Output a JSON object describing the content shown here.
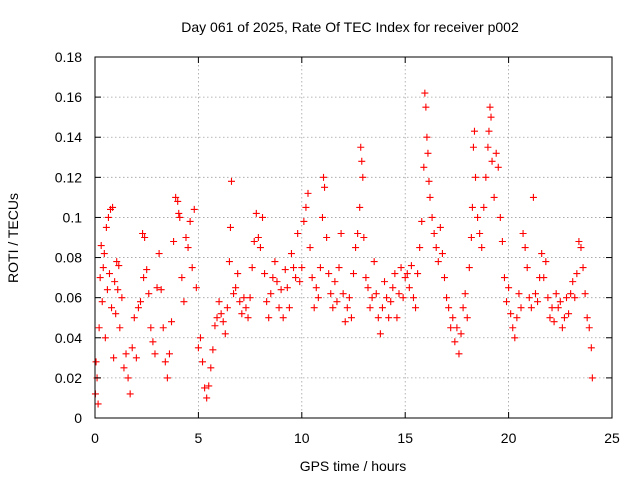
{
  "chart_data": {
    "type": "scatter",
    "title": "Day 061 of 2025, Rate Of TEC Index for receiver p002",
    "xlabel": "GPS time / hours",
    "ylabel": "ROTI / TECUs",
    "xlim": [
      0,
      25
    ],
    "ylim": [
      0,
      0.18
    ],
    "x_ticks": [
      0,
      5,
      10,
      15,
      20,
      25
    ],
    "x_tick_labels": [
      "0",
      "5",
      "10",
      "15",
      "20",
      "25"
    ],
    "y_ticks": [
      0,
      0.02,
      0.04,
      0.06,
      0.08,
      0.1,
      0.12,
      0.14,
      0.16,
      0.18
    ],
    "y_tick_labels": [
      "0",
      "0.02",
      "0.04",
      "0.06",
      "0.08",
      "0.1",
      "0.12",
      "0.14",
      "0.16",
      "0.18"
    ],
    "grid": true,
    "marker": "plus",
    "series": [
      {
        "color": "#ff0000",
        "points": [
          [
            0.02,
            0.012
          ],
          [
            0.05,
            0.028
          ],
          [
            0.1,
            0.02
          ],
          [
            0.15,
            0.007
          ],
          [
            0.2,
            0.045
          ],
          [
            0.25,
            0.07
          ],
          [
            0.3,
            0.086
          ],
          [
            0.35,
            0.058
          ],
          [
            0.4,
            0.075
          ],
          [
            0.45,
            0.082
          ],
          [
            0.5,
            0.04
          ],
          [
            0.55,
            0.095
          ],
          [
            0.6,
            0.064
          ],
          [
            0.65,
            0.1
          ],
          [
            0.7,
            0.072
          ],
          [
            0.75,
            0.104
          ],
          [
            0.8,
            0.055
          ],
          [
            0.85,
            0.105
          ],
          [
            0.9,
            0.03
          ],
          [
            0.95,
            0.068
          ],
          [
            1.0,
            0.052
          ],
          [
            1.05,
            0.078
          ],
          [
            1.1,
            0.064
          ],
          [
            1.15,
            0.076
          ],
          [
            1.2,
            0.045
          ],
          [
            1.3,
            0.06
          ],
          [
            1.4,
            0.025
          ],
          [
            1.5,
            0.032
          ],
          [
            1.6,
            0.02
          ],
          [
            1.7,
            0.012
          ],
          [
            1.8,
            0.035
          ],
          [
            1.9,
            0.05
          ],
          [
            2.0,
            0.03
          ],
          [
            2.1,
            0.055
          ],
          [
            2.2,
            0.058
          ],
          [
            2.3,
            0.092
          ],
          [
            2.35,
            0.07
          ],
          [
            2.4,
            0.09
          ],
          [
            2.5,
            0.074
          ],
          [
            2.6,
            0.062
          ],
          [
            2.7,
            0.045
          ],
          [
            2.8,
            0.038
          ],
          [
            2.9,
            0.032
          ],
          [
            3.0,
            0.065
          ],
          [
            3.1,
            0.082
          ],
          [
            3.2,
            0.064
          ],
          [
            3.3,
            0.045
          ],
          [
            3.4,
            0.028
          ],
          [
            3.5,
            0.02
          ],
          [
            3.6,
            0.032
          ],
          [
            3.7,
            0.048
          ],
          [
            3.8,
            0.088
          ],
          [
            3.9,
            0.11
          ],
          [
            4.0,
            0.108
          ],
          [
            4.05,
            0.102
          ],
          [
            4.1,
            0.1
          ],
          [
            4.2,
            0.07
          ],
          [
            4.3,
            0.058
          ],
          [
            4.4,
            0.09
          ],
          [
            4.5,
            0.085
          ],
          [
            4.6,
            0.098
          ],
          [
            4.7,
            0.075
          ],
          [
            4.8,
            0.104
          ],
          [
            4.9,
            0.065
          ],
          [
            5.0,
            0.035
          ],
          [
            5.1,
            0.04
          ],
          [
            5.2,
            0.028
          ],
          [
            5.3,
            0.015
          ],
          [
            5.4,
            0.01
          ],
          [
            5.5,
            0.016
          ],
          [
            5.6,
            0.025
          ],
          [
            5.7,
            0.034
          ],
          [
            5.8,
            0.046
          ],
          [
            5.9,
            0.05
          ],
          [
            6.0,
            0.058
          ],
          [
            6.1,
            0.052
          ],
          [
            6.2,
            0.048
          ],
          [
            6.3,
            0.042
          ],
          [
            6.4,
            0.055
          ],
          [
            6.5,
            0.078
          ],
          [
            6.55,
            0.095
          ],
          [
            6.6,
            0.118
          ],
          [
            6.7,
            0.062
          ],
          [
            6.8,
            0.065
          ],
          [
            6.9,
            0.072
          ],
          [
            7.0,
            0.058
          ],
          [
            7.1,
            0.052
          ],
          [
            7.2,
            0.06
          ],
          [
            7.3,
            0.055
          ],
          [
            7.4,
            0.05
          ],
          [
            7.5,
            0.06
          ],
          [
            7.6,
            0.075
          ],
          [
            7.7,
            0.088
          ],
          [
            7.8,
            0.102
          ],
          [
            7.9,
            0.09
          ],
          [
            8.0,
            0.085
          ],
          [
            8.1,
            0.1
          ],
          [
            8.2,
            0.072
          ],
          [
            8.3,
            0.058
          ],
          [
            8.4,
            0.05
          ],
          [
            8.5,
            0.062
          ],
          [
            8.6,
            0.07
          ],
          [
            8.7,
            0.078
          ],
          [
            8.8,
            0.068
          ],
          [
            8.9,
            0.055
          ],
          [
            9.0,
            0.064
          ],
          [
            9.1,
            0.05
          ],
          [
            9.2,
            0.074
          ],
          [
            9.3,
            0.065
          ],
          [
            9.4,
            0.055
          ],
          [
            9.5,
            0.082
          ],
          [
            9.6,
            0.075
          ],
          [
            9.7,
            0.07
          ],
          [
            9.8,
            0.092
          ],
          [
            9.9,
            0.068
          ],
          [
            10.0,
            0.075
          ],
          [
            10.1,
            0.098
          ],
          [
            10.2,
            0.105
          ],
          [
            10.3,
            0.112
          ],
          [
            10.4,
            0.085
          ],
          [
            10.5,
            0.07
          ],
          [
            10.6,
            0.055
          ],
          [
            10.7,
            0.065
          ],
          [
            10.8,
            0.06
          ],
          [
            10.9,
            0.075
          ],
          [
            11.0,
            0.1
          ],
          [
            11.05,
            0.12
          ],
          [
            11.1,
            0.115
          ],
          [
            11.2,
            0.09
          ],
          [
            11.3,
            0.072
          ],
          [
            11.4,
            0.062
          ],
          [
            11.5,
            0.055
          ],
          [
            11.6,
            0.068
          ],
          [
            11.7,
            0.058
          ],
          [
            11.8,
            0.075
          ],
          [
            11.9,
            0.092
          ],
          [
            12.0,
            0.062
          ],
          [
            12.1,
            0.048
          ],
          [
            12.2,
            0.055
          ],
          [
            12.3,
            0.06
          ],
          [
            12.4,
            0.05
          ],
          [
            12.5,
            0.072
          ],
          [
            12.6,
            0.085
          ],
          [
            12.7,
            0.092
          ],
          [
            12.8,
            0.105
          ],
          [
            12.85,
            0.135
          ],
          [
            12.9,
            0.128
          ],
          [
            12.95,
            0.12
          ],
          [
            13.0,
            0.09
          ],
          [
            13.1,
            0.07
          ],
          [
            13.2,
            0.065
          ],
          [
            13.3,
            0.055
          ],
          [
            13.4,
            0.06
          ],
          [
            13.5,
            0.078
          ],
          [
            13.6,
            0.062
          ],
          [
            13.7,
            0.05
          ],
          [
            13.8,
            0.042
          ],
          [
            13.9,
            0.055
          ],
          [
            14.0,
            0.068
          ],
          [
            14.1,
            0.06
          ],
          [
            14.2,
            0.05
          ],
          [
            14.3,
            0.058
          ],
          [
            14.4,
            0.065
          ],
          [
            14.5,
            0.072
          ],
          [
            14.6,
            0.05
          ],
          [
            14.7,
            0.062
          ],
          [
            14.8,
            0.075
          ],
          [
            14.9,
            0.06
          ],
          [
            15.0,
            0.07
          ],
          [
            15.1,
            0.072
          ],
          [
            15.2,
            0.065
          ],
          [
            15.3,
            0.076
          ],
          [
            15.4,
            0.06
          ],
          [
            15.5,
            0.055
          ],
          [
            15.6,
            0.072
          ],
          [
            15.7,
            0.085
          ],
          [
            15.8,
            0.098
          ],
          [
            15.9,
            0.125
          ],
          [
            15.95,
            0.162
          ],
          [
            16.0,
            0.155
          ],
          [
            16.05,
            0.14
          ],
          [
            16.1,
            0.132
          ],
          [
            16.15,
            0.118
          ],
          [
            16.2,
            0.11
          ],
          [
            16.3,
            0.1
          ],
          [
            16.4,
            0.092
          ],
          [
            16.5,
            0.085
          ],
          [
            16.6,
            0.078
          ],
          [
            16.7,
            0.095
          ],
          [
            16.8,
            0.082
          ],
          [
            16.9,
            0.07
          ],
          [
            17.0,
            0.06
          ],
          [
            17.1,
            0.055
          ],
          [
            17.2,
            0.045
          ],
          [
            17.3,
            0.05
          ],
          [
            17.4,
            0.038
          ],
          [
            17.5,
            0.045
          ],
          [
            17.6,
            0.032
          ],
          [
            17.7,
            0.042
          ],
          [
            17.8,
            0.055
          ],
          [
            17.9,
            0.062
          ],
          [
            18.0,
            0.05
          ],
          [
            18.1,
            0.075
          ],
          [
            18.2,
            0.09
          ],
          [
            18.25,
            0.105
          ],
          [
            18.3,
            0.135
          ],
          [
            18.35,
            0.143
          ],
          [
            18.4,
            0.12
          ],
          [
            18.5,
            0.1
          ],
          [
            18.6,
            0.092
          ],
          [
            18.7,
            0.085
          ],
          [
            18.8,
            0.105
          ],
          [
            18.9,
            0.12
          ],
          [
            19.0,
            0.135
          ],
          [
            19.05,
            0.143
          ],
          [
            19.1,
            0.155
          ],
          [
            19.15,
            0.15
          ],
          [
            19.2,
            0.128
          ],
          [
            19.3,
            0.11
          ],
          [
            19.4,
            0.132
          ],
          [
            19.5,
            0.125
          ],
          [
            19.6,
            0.1
          ],
          [
            19.7,
            0.088
          ],
          [
            19.8,
            0.07
          ],
          [
            19.9,
            0.058
          ],
          [
            20.0,
            0.065
          ],
          [
            20.1,
            0.052
          ],
          [
            20.2,
            0.045
          ],
          [
            20.3,
            0.04
          ],
          [
            20.4,
            0.05
          ],
          [
            20.5,
            0.062
          ],
          [
            20.6,
            0.055
          ],
          [
            20.7,
            0.092
          ],
          [
            20.8,
            0.085
          ],
          [
            20.9,
            0.075
          ],
          [
            21.0,
            0.06
          ],
          [
            21.1,
            0.055
          ],
          [
            21.2,
            0.11
          ],
          [
            21.3,
            0.062
          ],
          [
            21.4,
            0.058
          ],
          [
            21.5,
            0.07
          ],
          [
            21.6,
            0.082
          ],
          [
            21.7,
            0.07
          ],
          [
            21.8,
            0.078
          ],
          [
            21.9,
            0.06
          ],
          [
            22.0,
            0.05
          ],
          [
            22.1,
            0.055
          ],
          [
            22.2,
            0.048
          ],
          [
            22.3,
            0.062
          ],
          [
            22.4,
            0.055
          ],
          [
            22.5,
            0.058
          ],
          [
            22.6,
            0.045
          ],
          [
            22.7,
            0.05
          ],
          [
            22.8,
            0.06
          ],
          [
            22.9,
            0.052
          ],
          [
            23.0,
            0.062
          ],
          [
            23.1,
            0.068
          ],
          [
            23.2,
            0.06
          ],
          [
            23.3,
            0.072
          ],
          [
            23.4,
            0.088
          ],
          [
            23.5,
            0.085
          ],
          [
            23.6,
            0.075
          ],
          [
            23.7,
            0.062
          ],
          [
            23.8,
            0.05
          ],
          [
            23.9,
            0.045
          ],
          [
            24.0,
            0.035
          ],
          [
            24.05,
            0.02
          ]
        ]
      }
    ]
  }
}
